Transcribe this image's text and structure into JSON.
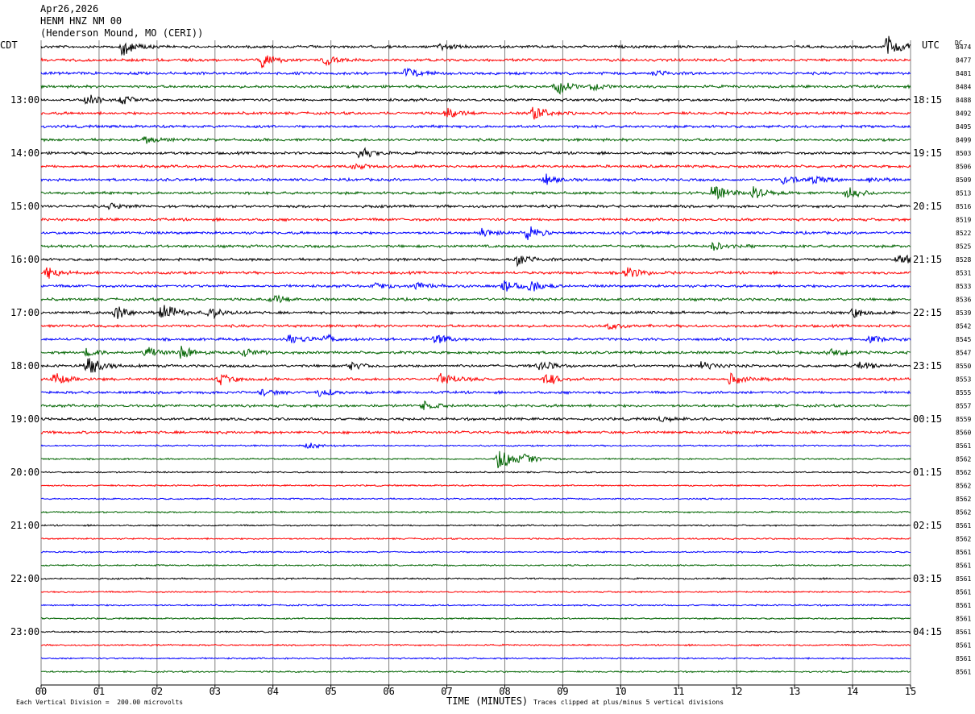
{
  "header": {
    "date": "Apr26,2026",
    "station": "HENM HNZ NM 00",
    "location": "(Henderson Mound, MO (CERI))"
  },
  "left_tz_label": "CDT",
  "right_tz_label": "UTC",
  "dc_label": "DC",
  "footer": {
    "scale_note": "Each Vertical Division =  200.00 microvolts",
    "clip_note": "Traces clipped at plus/minus 5 vertical divisions"
  },
  "colors": {
    "black": "#000000",
    "red": "#ff0000",
    "blue": "#0000ff",
    "green": "#006400",
    "grid": "#808080"
  },
  "chart_data": {
    "type": "line",
    "title": "HENM HNZ NM 00",
    "xlabel": "TIME (MINUTES)",
    "x_ticks": [
      "00",
      "01",
      "02",
      "03",
      "04",
      "05",
      "06",
      "07",
      "08",
      "09",
      "10",
      "11",
      "12",
      "13",
      "14",
      "15"
    ],
    "xlim": [
      0,
      15
    ],
    "trace_colors": [
      "black",
      "red",
      "blue",
      "green"
    ],
    "left_time_labels": [
      "13:00",
      "14:00",
      "15:00",
      "16:00",
      "17:00",
      "18:00",
      "19:00",
      "20:00",
      "21:00",
      "22:00",
      "23:00"
    ],
    "right_time_labels": [
      "18:15",
      "19:15",
      "20:15",
      "21:15",
      "22:15",
      "23:15",
      "00:15",
      "01:15",
      "02:15",
      "03:15",
      "04:15"
    ],
    "dc_offsets": [
      "8474",
      "8477",
      "8481",
      "8484",
      "8488",
      "8492",
      "8495",
      "8499",
      "8503",
      "8506",
      "8509",
      "8513",
      "8516",
      "8519",
      "8522",
      "8525",
      "8528",
      "8531",
      "8533",
      "8536",
      "8539",
      "8542",
      "8545",
      "8547",
      "8550",
      "8553",
      "8555",
      "8557",
      "8559",
      "8560",
      "8561",
      "8562",
      "8562",
      "8562",
      "8562",
      "8562",
      "8561",
      "8562",
      "8561",
      "8561",
      "8561",
      "8561",
      "8561",
      "8561",
      "8561",
      "8561",
      "8561",
      "8561"
    ],
    "events": [
      {
        "trace": 0,
        "minute": 1.4,
        "amp": 12
      },
      {
        "trace": 0,
        "minute": 6.9,
        "amp": 4
      },
      {
        "trace": 0,
        "minute": 14.6,
        "amp": 16
      },
      {
        "trace": 1,
        "minute": 3.8,
        "amp": 11
      },
      {
        "trace": 1,
        "minute": 4.9,
        "amp": 8
      },
      {
        "trace": 2,
        "minute": 6.3,
        "amp": 8
      },
      {
        "trace": 2,
        "minute": 10.6,
        "amp": 4
      },
      {
        "trace": 3,
        "minute": 8.9,
        "amp": 10
      },
      {
        "trace": 3,
        "minute": 9.5,
        "amp": 5
      },
      {
        "trace": 4,
        "minute": 0.8,
        "amp": 9
      },
      {
        "trace": 4,
        "minute": 1.4,
        "amp": 6
      },
      {
        "trace": 5,
        "minute": 7.0,
        "amp": 7
      },
      {
        "trace": 5,
        "minute": 8.5,
        "amp": 12
      },
      {
        "trace": 7,
        "minute": 1.8,
        "amp": 5
      },
      {
        "trace": 8,
        "minute": 5.5,
        "amp": 8
      },
      {
        "trace": 9,
        "minute": 5.4,
        "amp": 4
      },
      {
        "trace": 10,
        "minute": 8.7,
        "amp": 7
      },
      {
        "trace": 10,
        "minute": 12.8,
        "amp": 6
      },
      {
        "trace": 10,
        "minute": 13.3,
        "amp": 7
      },
      {
        "trace": 10,
        "minute": 14.3,
        "amp": 5
      },
      {
        "trace": 11,
        "minute": 11.6,
        "amp": 13
      },
      {
        "trace": 11,
        "minute": 12.3,
        "amp": 8
      },
      {
        "trace": 11,
        "minute": 13.9,
        "amp": 9
      },
      {
        "trace": 12,
        "minute": 1.2,
        "amp": 4
      },
      {
        "trace": 14,
        "minute": 8.4,
        "amp": 9
      },
      {
        "trace": 14,
        "minute": 7.6,
        "amp": 5
      },
      {
        "trace": 15,
        "minute": 11.6,
        "amp": 6
      },
      {
        "trace": 16,
        "minute": 8.2,
        "amp": 10
      },
      {
        "trace": 16,
        "minute": 14.8,
        "amp": 10
      },
      {
        "trace": 17,
        "minute": 0.1,
        "amp": 10
      },
      {
        "trace": 17,
        "minute": 10.1,
        "amp": 11
      },
      {
        "trace": 18,
        "minute": 8.0,
        "amp": 10
      },
      {
        "trace": 18,
        "minute": 8.4,
        "amp": 11
      },
      {
        "trace": 18,
        "minute": 6.5,
        "amp": 6
      },
      {
        "trace": 18,
        "minute": 5.8,
        "amp": 5
      },
      {
        "trace": 19,
        "minute": 4.0,
        "amp": 7
      },
      {
        "trace": 20,
        "minute": 1.3,
        "amp": 12
      },
      {
        "trace": 20,
        "minute": 2.1,
        "amp": 16
      },
      {
        "trace": 20,
        "minute": 2.9,
        "amp": 8
      },
      {
        "trace": 20,
        "minute": 14.0,
        "amp": 7
      },
      {
        "trace": 21,
        "minute": 9.8,
        "amp": 4
      },
      {
        "trace": 22,
        "minute": 4.3,
        "amp": 8
      },
      {
        "trace": 22,
        "minute": 4.9,
        "amp": 6
      },
      {
        "trace": 22,
        "minute": 6.8,
        "amp": 8
      },
      {
        "trace": 22,
        "minute": 14.3,
        "amp": 5
      },
      {
        "trace": 23,
        "minute": 0.8,
        "amp": 6
      },
      {
        "trace": 23,
        "minute": 1.8,
        "amp": 8
      },
      {
        "trace": 23,
        "minute": 2.4,
        "amp": 12
      },
      {
        "trace": 23,
        "minute": 3.5,
        "amp": 6
      },
      {
        "trace": 23,
        "minute": 13.6,
        "amp": 7
      },
      {
        "trace": 24,
        "minute": 0.8,
        "amp": 16
      },
      {
        "trace": 24,
        "minute": 5.3,
        "amp": 6
      },
      {
        "trace": 24,
        "minute": 8.6,
        "amp": 8
      },
      {
        "trace": 24,
        "minute": 14.1,
        "amp": 7
      },
      {
        "trace": 24,
        "minute": 11.4,
        "amp": 6
      },
      {
        "trace": 25,
        "minute": 0.2,
        "amp": 10
      },
      {
        "trace": 25,
        "minute": 3.1,
        "amp": 7
      },
      {
        "trace": 25,
        "minute": 6.9,
        "amp": 11
      },
      {
        "trace": 25,
        "minute": 8.7,
        "amp": 9
      },
      {
        "trace": 25,
        "minute": 11.9,
        "amp": 8
      },
      {
        "trace": 26,
        "minute": 3.8,
        "amp": 5
      },
      {
        "trace": 26,
        "minute": 4.8,
        "amp": 6
      },
      {
        "trace": 27,
        "minute": 6.6,
        "amp": 6
      },
      {
        "trace": 28,
        "minute": 10.7,
        "amp": 4
      },
      {
        "trace": 30,
        "minute": 4.6,
        "amp": 5
      },
      {
        "trace": 31,
        "minute": 7.9,
        "amp": 22
      },
      {
        "trace": 31,
        "minute": 8.3,
        "amp": 8
      }
    ]
  }
}
